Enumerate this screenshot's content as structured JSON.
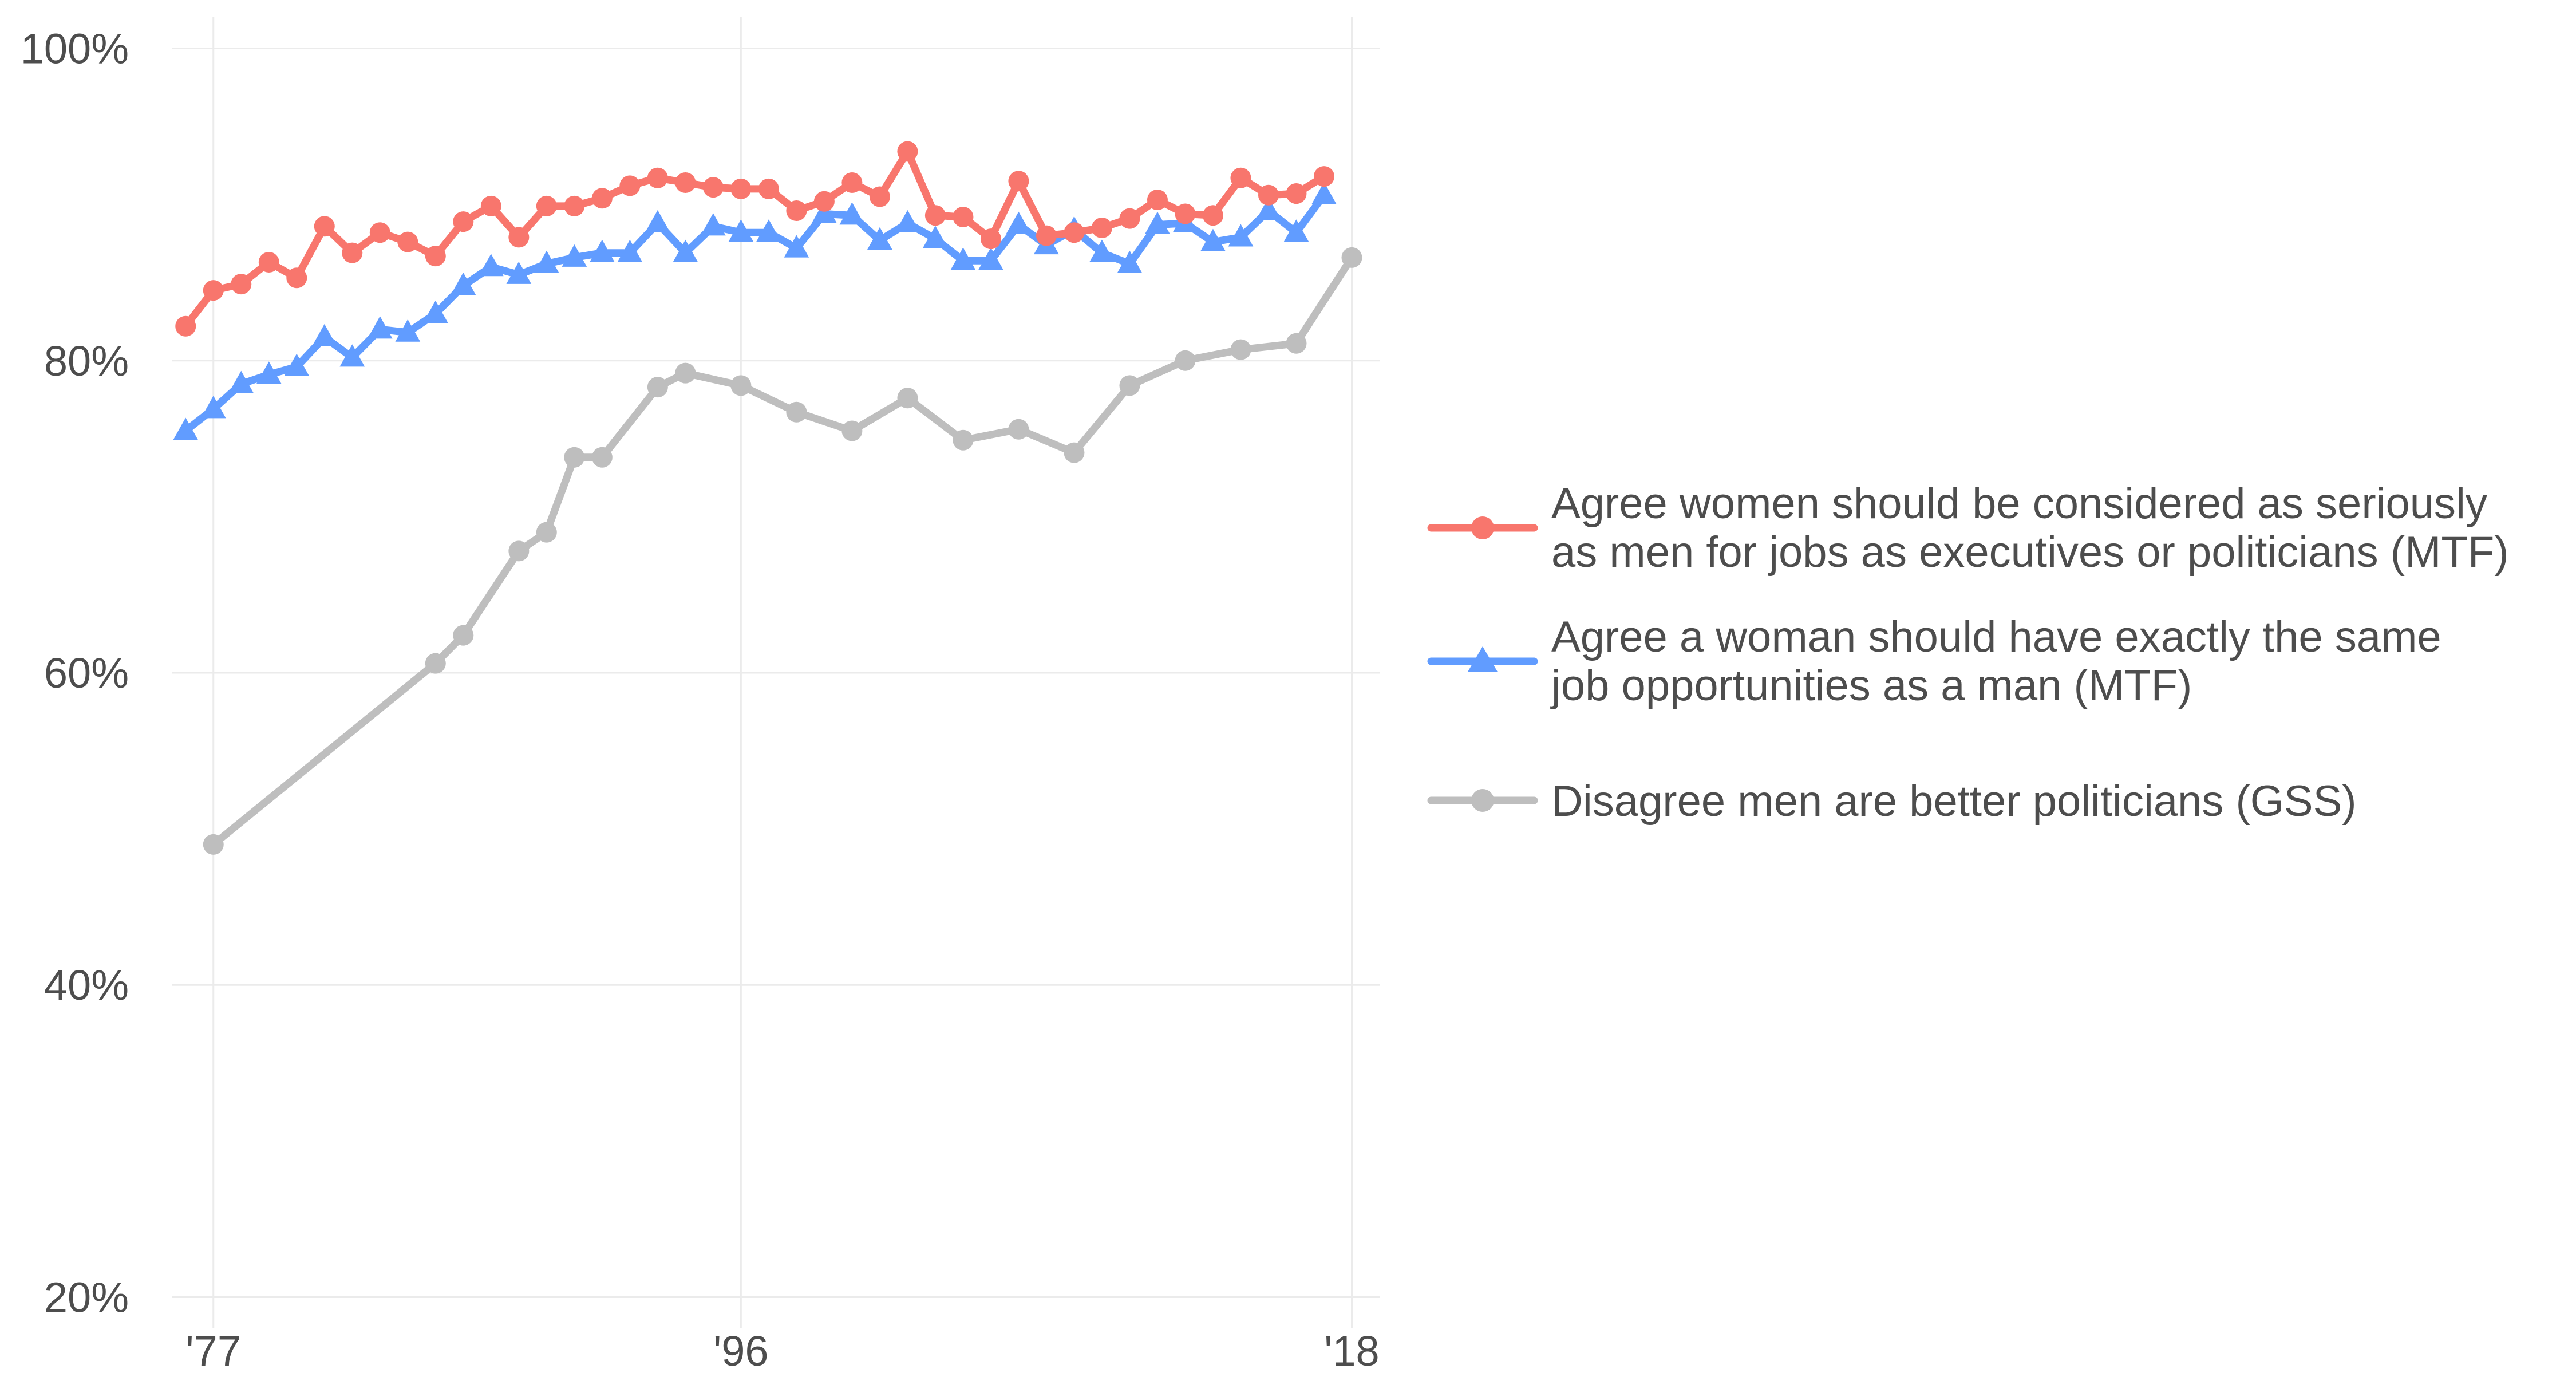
{
  "chart_data": {
    "type": "line",
    "title": "",
    "xlabel": "",
    "ylabel": "",
    "xlim": [
      1975.5,
      2019.0
    ],
    "ylim": [
      0.18,
      1.02
    ],
    "x_ticks": [
      {
        "value": 1977,
        "label": "'77"
      },
      {
        "value": 1996,
        "label": "'96"
      },
      {
        "value": 2018,
        "label": "'18"
      }
    ],
    "y_ticks": [
      {
        "value": 0.2,
        "label": "20%"
      },
      {
        "value": 0.4,
        "label": "40%"
      },
      {
        "value": 0.6,
        "label": "60%"
      },
      {
        "value": 0.8,
        "label": "80%"
      },
      {
        "value": 1.0,
        "label": "100%"
      }
    ],
    "grid": true,
    "legend_position": "right",
    "series": [
      {
        "name": "Agree women should be considered as seriously as men for jobs as executives or politicians (MTF)",
        "legend_lines": [
          "Agree women should be considered as seriously",
          "as men for jobs as executives or politicians (MTF)"
        ],
        "color": "#F8766D",
        "marker": "circle",
        "x": [
          1976,
          1977,
          1978,
          1979,
          1980,
          1981,
          1982,
          1983,
          1984,
          1985,
          1986,
          1987,
          1988,
          1989,
          1990,
          1991,
          1992,
          1993,
          1994,
          1995,
          1996,
          1997,
          1998,
          1999,
          2000,
          2001,
          2002,
          2003,
          2004,
          2005,
          2006,
          2007,
          2008,
          2009,
          2010,
          2011,
          2012,
          2013,
          2014,
          2015,
          2016,
          2017
        ],
        "y": [
          0.822,
          0.845,
          0.849,
          0.863,
          0.853,
          0.886,
          0.869,
          0.882,
          0.876,
          0.867,
          0.889,
          0.899,
          0.879,
          0.899,
          0.899,
          0.904,
          0.912,
          0.917,
          0.914,
          0.911,
          0.91,
          0.91,
          0.896,
          0.902,
          0.914,
          0.905,
          0.934,
          0.893,
          0.892,
          0.878,
          0.915,
          0.88,
          0.882,
          0.885,
          0.891,
          0.903,
          0.894,
          0.893,
          0.917,
          0.906,
          0.907,
          0.918
        ]
      },
      {
        "name": "Agree a woman should have exactly the same job opportunities as a man (MTF)",
        "legend_lines": [
          "Agree a woman should have exactly the same",
          "job opportunities as a man (MTF)"
        ],
        "color": "#619CFF",
        "marker": "triangle",
        "x": [
          1976,
          1977,
          1978,
          1979,
          1980,
          1981,
          1982,
          1983,
          1984,
          1985,
          1986,
          1987,
          1988,
          1989,
          1990,
          1991,
          1992,
          1993,
          1994,
          1995,
          1996,
          1997,
          1998,
          1999,
          2000,
          2001,
          2002,
          2003,
          2004,
          2005,
          2006,
          2007,
          2008,
          2009,
          2010,
          2011,
          2012,
          2013,
          2014,
          2015,
          2016,
          2017
        ],
        "y": [
          0.755,
          0.769,
          0.785,
          0.791,
          0.796,
          0.815,
          0.802,
          0.82,
          0.818,
          0.83,
          0.848,
          0.86,
          0.855,
          0.862,
          0.866,
          0.869,
          0.869,
          0.888,
          0.869,
          0.886,
          0.882,
          0.882,
          0.872,
          0.894,
          0.893,
          0.877,
          0.888,
          0.878,
          0.864,
          0.864,
          0.887,
          0.874,
          0.884,
          0.869,
          0.862,
          0.887,
          0.888,
          0.876,
          0.879,
          0.896,
          0.882,
          0.906
        ]
      },
      {
        "name": "Disagree men are better politicians (GSS)",
        "legend_lines": [
          "Disagree men are better politicians (GSS)"
        ],
        "color": "#BEBEBE",
        "marker": "circle",
        "x": [
          1977,
          1985,
          1986,
          1988,
          1989,
          1990,
          1991,
          1993,
          1994,
          1996,
          1998,
          2000,
          2002,
          2004,
          2006,
          2008,
          2010,
          2012,
          2014,
          2016,
          2018
        ],
        "y": [
          0.49,
          0.606,
          0.624,
          0.678,
          0.69,
          0.738,
          0.738,
          0.783,
          0.792,
          0.784,
          0.767,
          0.755,
          0.776,
          0.749,
          0.756,
          0.741,
          0.784,
          0.8,
          0.807,
          0.811,
          0.866
        ]
      }
    ]
  }
}
